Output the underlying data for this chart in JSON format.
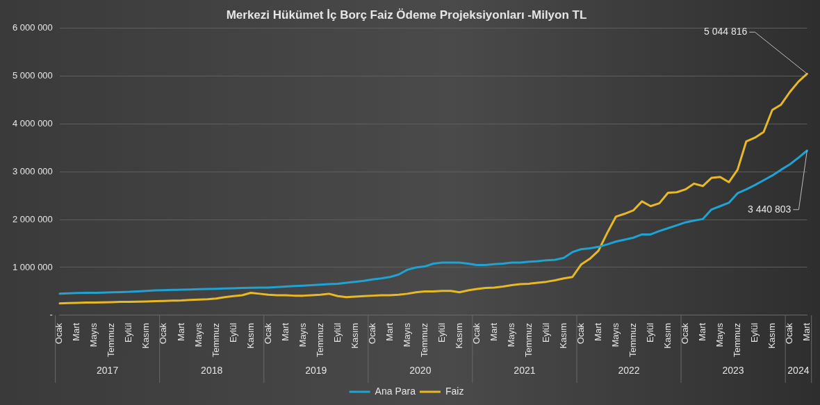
{
  "chart_data": {
    "type": "line",
    "title": "Merkezi Hükümet İç Borç Faiz Ödeme Projeksiyonları -Milyon TL",
    "categories": [
      "Ocak",
      null,
      "Mart",
      null,
      "Mayıs",
      null,
      "Temmuz",
      null,
      "Eylül",
      null,
      "Kasım",
      null,
      "Ocak",
      null,
      "Mart",
      null,
      "Mayıs",
      null,
      "Temmuz",
      null,
      "Eylül",
      null,
      "Kasım",
      null,
      "Ocak",
      null,
      "Mart",
      null,
      "Mayıs",
      null,
      "Temmuz",
      null,
      "Eylül",
      null,
      "Kasım",
      null,
      "Ocak",
      null,
      "Mart",
      null,
      "Mayıs",
      null,
      "Temmuz",
      null,
      "Eylül",
      null,
      "Kasım",
      null,
      "Ocak",
      null,
      "Mart",
      null,
      "Mayıs",
      null,
      "Temmuz",
      null,
      "Eylül",
      null,
      "Kasım",
      null,
      "Ocak",
      null,
      "Mart",
      null,
      "Mayıs",
      null,
      "Temmuz",
      null,
      "Eylül",
      null,
      "Kasım",
      null,
      "Ocak",
      null,
      "Mart",
      null,
      "Mayıs",
      null,
      "Temmuz",
      null,
      "Eylül",
      null,
      "Kasım",
      null,
      "Ocak",
      null,
      "Mart"
    ],
    "series": [
      {
        "name": "Ana Para",
        "color": "#1fa3d4",
        "values": [
          450000,
          460000,
          465000,
          470000,
          470000,
          475000,
          480000,
          485000,
          490000,
          500000,
          510000,
          520000,
          525000,
          530000,
          535000,
          540000,
          545000,
          550000,
          555000,
          560000,
          565000,
          570000,
          575000,
          580000,
          580000,
          590000,
          600000,
          610000,
          620000,
          630000,
          640000,
          650000,
          660000,
          680000,
          700000,
          720000,
          750000,
          770000,
          800000,
          850000,
          950000,
          1000000,
          1020000,
          1080000,
          1100000,
          1100000,
          1100000,
          1080000,
          1050000,
          1050000,
          1070000,
          1080000,
          1100000,
          1100000,
          1120000,
          1130000,
          1150000,
          1160000,
          1200000,
          1320000,
          1380000,
          1400000,
          1430000,
          1480000,
          1540000,
          1580000,
          1620000,
          1690000,
          1690000,
          1760000,
          1820000,
          1880000,
          1940000,
          1980000,
          2010000,
          2210000,
          2280000,
          2350000,
          2550000,
          2630000,
          2720000,
          2820000,
          2920000,
          3040000,
          3150000,
          3290000,
          3440803
        ],
        "value_labels": [
          null,
          null,
          null,
          null,
          null,
          null,
          null,
          null,
          null,
          null,
          null,
          null,
          null,
          null,
          null,
          null,
          null,
          null,
          null,
          null,
          null,
          null,
          null,
          null,
          null,
          null,
          null,
          null,
          null,
          null,
          null,
          null,
          null,
          null,
          null,
          null,
          null,
          null,
          null,
          null,
          null,
          null,
          null,
          null,
          null,
          null,
          null,
          null,
          null,
          null,
          null,
          null,
          null,
          null,
          null,
          null,
          null,
          null,
          null,
          null,
          null,
          null,
          null,
          null,
          null,
          null,
          null,
          null,
          null,
          null,
          null,
          null,
          null,
          null,
          null,
          null,
          null,
          null,
          null,
          null,
          null,
          null,
          null,
          null,
          null,
          null,
          "3 440 803"
        ]
      },
      {
        "name": "Faiz",
        "color": "#e8b923",
        "values": [
          250000,
          255000,
          260000,
          265000,
          265000,
          270000,
          275000,
          280000,
          280000,
          285000,
          290000,
          295000,
          300000,
          305000,
          310000,
          320000,
          330000,
          335000,
          350000,
          380000,
          400000,
          420000,
          470000,
          450000,
          430000,
          420000,
          420000,
          410000,
          410000,
          420000,
          430000,
          450000,
          400000,
          380000,
          390000,
          400000,
          410000,
          420000,
          420000,
          430000,
          450000,
          480000,
          500000,
          500000,
          510000,
          510000,
          480000,
          520000,
          550000,
          570000,
          580000,
          600000,
          630000,
          650000,
          660000,
          680000,
          700000,
          730000,
          770000,
          800000,
          1060000,
          1180000,
          1350000,
          1720000,
          2060000,
          2120000,
          2190000,
          2380000,
          2280000,
          2340000,
          2560000,
          2570000,
          2630000,
          2750000,
          2700000,
          2870000,
          2890000,
          2780000,
          3040000,
          3630000,
          3710000,
          3830000,
          4290000,
          4400000,
          4660000,
          4880000,
          5044816
        ],
        "value_labels": [
          null,
          null,
          null,
          null,
          null,
          null,
          null,
          null,
          null,
          null,
          null,
          null,
          null,
          null,
          null,
          null,
          null,
          null,
          null,
          null,
          null,
          null,
          null,
          null,
          null,
          null,
          null,
          null,
          null,
          null,
          null,
          null,
          null,
          null,
          null,
          null,
          null,
          null,
          null,
          null,
          null,
          null,
          null,
          null,
          null,
          null,
          null,
          null,
          null,
          null,
          null,
          null,
          null,
          null,
          null,
          null,
          null,
          null,
          null,
          null,
          null,
          null,
          null,
          null,
          null,
          null,
          null,
          null,
          null,
          null,
          null,
          null,
          null,
          null,
          null,
          null,
          null,
          null,
          null,
          null,
          null,
          null,
          null,
          null,
          null,
          null,
          "5 044 816"
        ]
      }
    ],
    "ylim": [
      0,
      6000000
    ],
    "yticks": [
      {
        "value": 0,
        "label": "-"
      },
      {
        "value": 1000000,
        "label": "1 000 000"
      },
      {
        "value": 2000000,
        "label": "2 000 000"
      },
      {
        "value": 3000000,
        "label": "3 000 000"
      },
      {
        "value": 4000000,
        "label": "4 000 000"
      },
      {
        "value": 5000000,
        "label": "5 000 000"
      },
      {
        "value": 6000000,
        "label": "6 000 000"
      }
    ],
    "annotations": [
      "2017",
      "2018",
      "2019",
      "2020",
      "2021",
      "2022",
      "2023",
      "2024"
    ],
    "grid": "y",
    "legend": "bottom",
    "marker": "none",
    "line_style": "solid"
  }
}
